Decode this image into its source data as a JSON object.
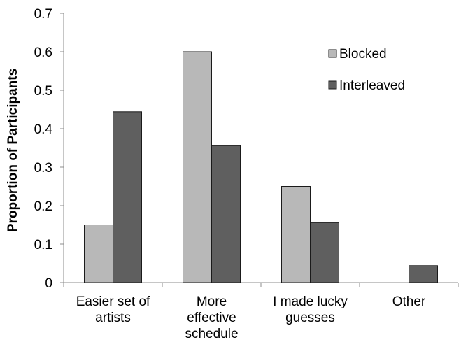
{
  "chart_data": {
    "type": "bar",
    "categories": [
      [
        "Easier set of",
        "artists"
      ],
      [
        "More",
        "effective",
        "schedule"
      ],
      [
        "I made lucky",
        "guesses"
      ],
      [
        "Other"
      ]
    ],
    "series": [
      {
        "name": "Blocked",
        "color": "#b8b8b8",
        "values": [
          0.15,
          0.6,
          0.25,
          0
        ]
      },
      {
        "name": "Interleaved",
        "color": "#5f5f5f",
        "values": [
          0.444,
          0.356,
          0.156,
          0.044
        ]
      }
    ],
    "title": "",
    "xlabel": "",
    "ylabel": "Proportion of Participants",
    "ylim": [
      0,
      0.7
    ],
    "yticks": [
      "0",
      "0.1",
      "0.2",
      "0.3",
      "0.4",
      "0.5",
      "0.6",
      "0.7"
    ],
    "grid": false,
    "legend_position": "top-right"
  }
}
